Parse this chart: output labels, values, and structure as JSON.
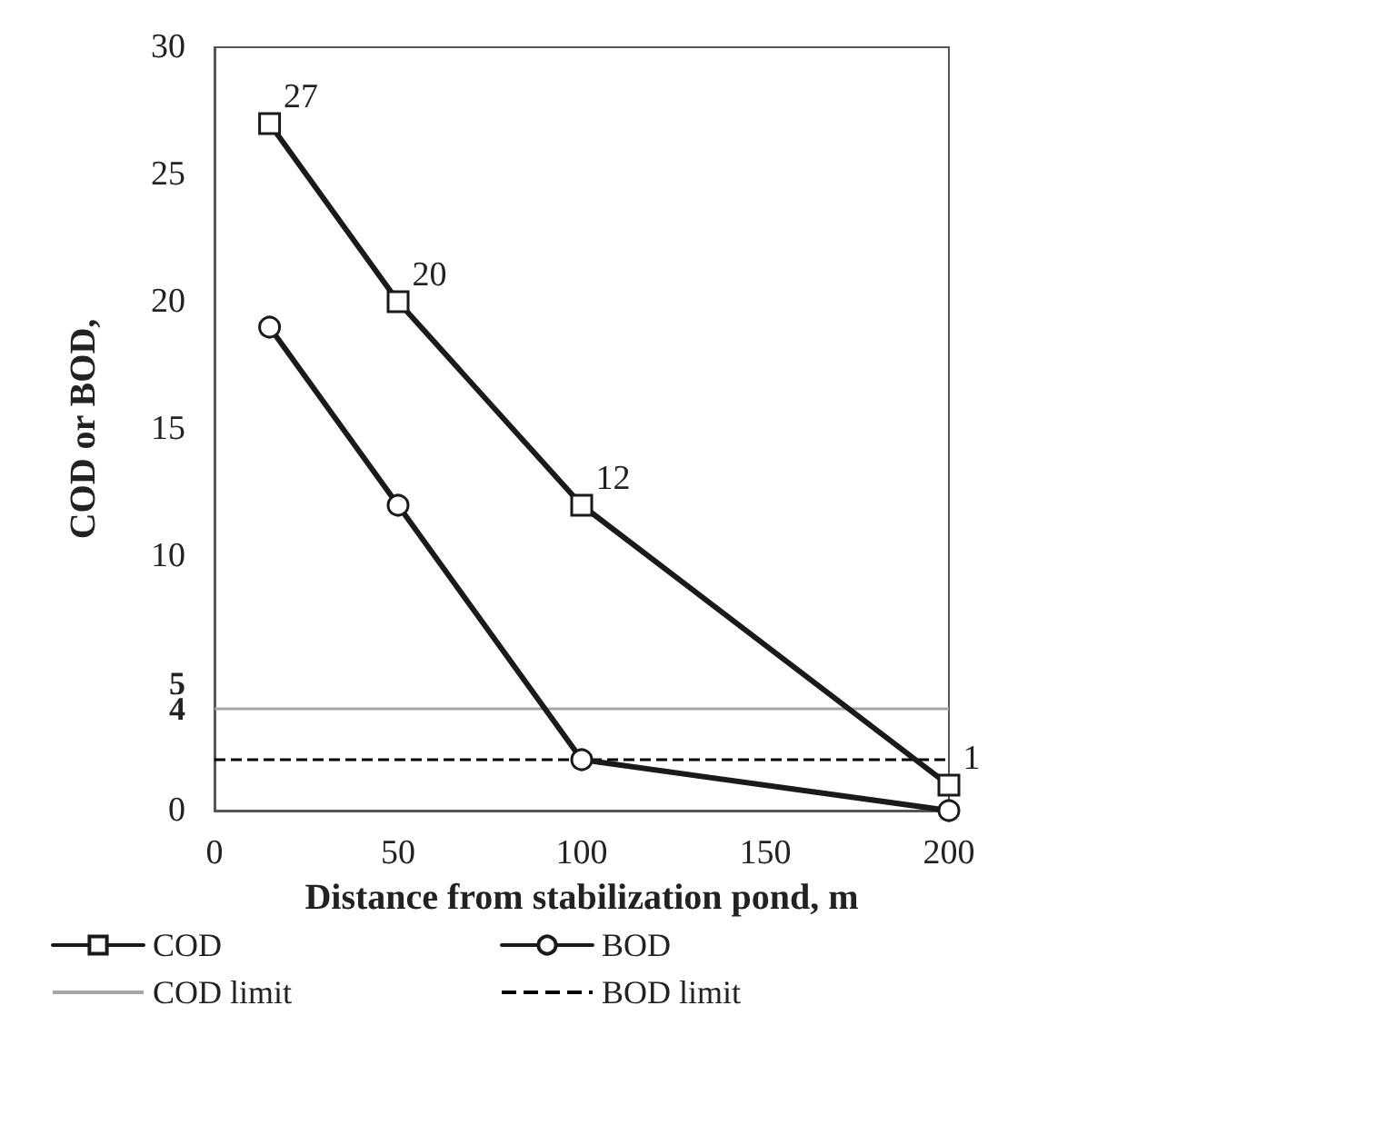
{
  "chart_data": {
    "type": "line",
    "xlabel": "Distance from stabilization pond, m",
    "ylabel": "COD or BOD,",
    "xlim": [
      0,
      200
    ],
    "xticks": [
      0,
      50,
      100,
      150,
      200
    ],
    "ylim": [
      0,
      30
    ],
    "yticks": [
      0,
      4,
      5,
      10,
      15,
      20,
      25,
      30
    ],
    "series": [
      {
        "name": "COD",
        "color": "#1a1a1a",
        "marker": "square",
        "x": [
          15,
          50,
          100,
          200
        ],
        "values": [
          27,
          20,
          12,
          1
        ],
        "value_labels": [
          "27",
          "20",
          "12",
          "1"
        ]
      },
      {
        "name": "BOD",
        "color": "#1a1a1a",
        "marker": "circle",
        "x": [
          15,
          50,
          100,
          200
        ],
        "values": [
          19,
          12,
          2,
          0
        ]
      }
    ],
    "ref_lines": [
      {
        "axis": "y",
        "value": 4,
        "label": "COD limit",
        "color": "#a6a6a6",
        "line_style": "solid"
      },
      {
        "axis": "y",
        "value": 2,
        "label": "BOD limit",
        "color": "#000000",
        "line_style": "dashed"
      }
    ],
    "legend": "bottom",
    "grid": false
  }
}
